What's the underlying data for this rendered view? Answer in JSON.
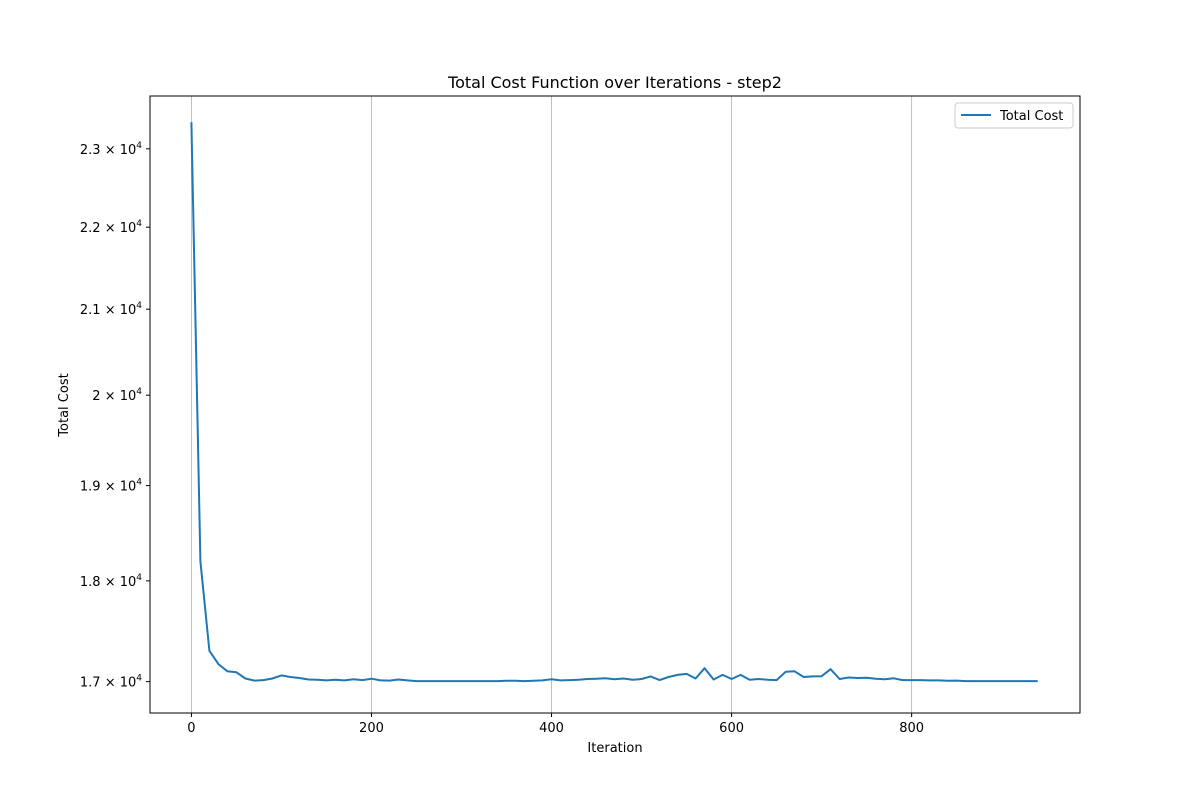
{
  "chart_data": {
    "type": "line",
    "title": "Total Cost Function over Iterations - step2",
    "xlabel": "Iteration",
    "ylabel": "Total Cost",
    "yscale": "log",
    "xlim": [
      -46,
      987
    ],
    "ylim": [
      16700,
      23700
    ],
    "grid": "x-only",
    "legend": "top-right",
    "x_ticks": [
      0,
      200,
      400,
      600,
      800
    ],
    "y_ticks": [
      {
        "value": 17000,
        "label": "1.7 × 10^4",
        "mantissa": "1.7 × 10",
        "exp": "4"
      },
      {
        "value": 18000,
        "label": "1.8 × 10^4",
        "mantissa": "1.8 × 10",
        "exp": "4"
      },
      {
        "value": 19000,
        "label": "1.9 × 10^4",
        "mantissa": "1.9 × 10",
        "exp": "4"
      },
      {
        "value": 20000,
        "label": "2 × 10^4",
        "mantissa": "2 × 10",
        "exp": "4"
      },
      {
        "value": 21000,
        "label": "2.1 × 10^4",
        "mantissa": "2.1 × 10",
        "exp": "4"
      },
      {
        "value": 22000,
        "label": "2.2 × 10^4",
        "mantissa": "2.2 × 10",
        "exp": "4"
      },
      {
        "value": 23000,
        "label": "2.3 × 10^4",
        "mantissa": "2.3 × 10",
        "exp": "4"
      }
    ],
    "series": [
      {
        "name": "Total Cost",
        "color": "#1f77b4",
        "x": [
          0,
          10,
          20,
          30,
          40,
          50,
          60,
          70,
          80,
          90,
          100,
          110,
          120,
          130,
          140,
          150,
          160,
          170,
          180,
          190,
          200,
          210,
          220,
          230,
          240,
          250,
          260,
          270,
          280,
          290,
          300,
          310,
          320,
          330,
          340,
          350,
          360,
          370,
          380,
          390,
          400,
          410,
          420,
          430,
          440,
          450,
          460,
          470,
          480,
          490,
          500,
          510,
          520,
          530,
          540,
          550,
          560,
          570,
          580,
          590,
          600,
          610,
          620,
          630,
          640,
          650,
          660,
          670,
          680,
          690,
          700,
          710,
          720,
          730,
          740,
          750,
          760,
          770,
          780,
          790,
          800,
          810,
          820,
          830,
          840,
          850,
          860,
          870,
          880,
          890,
          900,
          910,
          920,
          930,
          940
        ],
        "y": [
          23350,
          18200,
          17300,
          17170,
          17100,
          17090,
          17030,
          17010,
          17015,
          17030,
          17060,
          17045,
          17035,
          17020,
          17018,
          17012,
          17018,
          17012,
          17022,
          17015,
          17028,
          17012,
          17010,
          17020,
          17012,
          17005,
          17005,
          17005,
          17005,
          17005,
          17005,
          17005,
          17005,
          17005,
          17005,
          17008,
          17008,
          17005,
          17008,
          17012,
          17022,
          17012,
          17015,
          17018,
          17025,
          17028,
          17032,
          17022,
          17030,
          17018,
          17025,
          17050,
          17015,
          17045,
          17065,
          17075,
          17030,
          17130,
          17020,
          17065,
          17025,
          17065,
          17018,
          17025,
          17018,
          17015,
          17095,
          17100,
          17045,
          17050,
          17052,
          17120,
          17025,
          17040,
          17035,
          17038,
          17028,
          17022,
          17032,
          17015,
          17015,
          17015,
          17012,
          17012,
          17008,
          17010,
          17005,
          17005,
          17005,
          17005,
          17005,
          17005,
          17005,
          17005,
          17005
        ]
      }
    ]
  }
}
